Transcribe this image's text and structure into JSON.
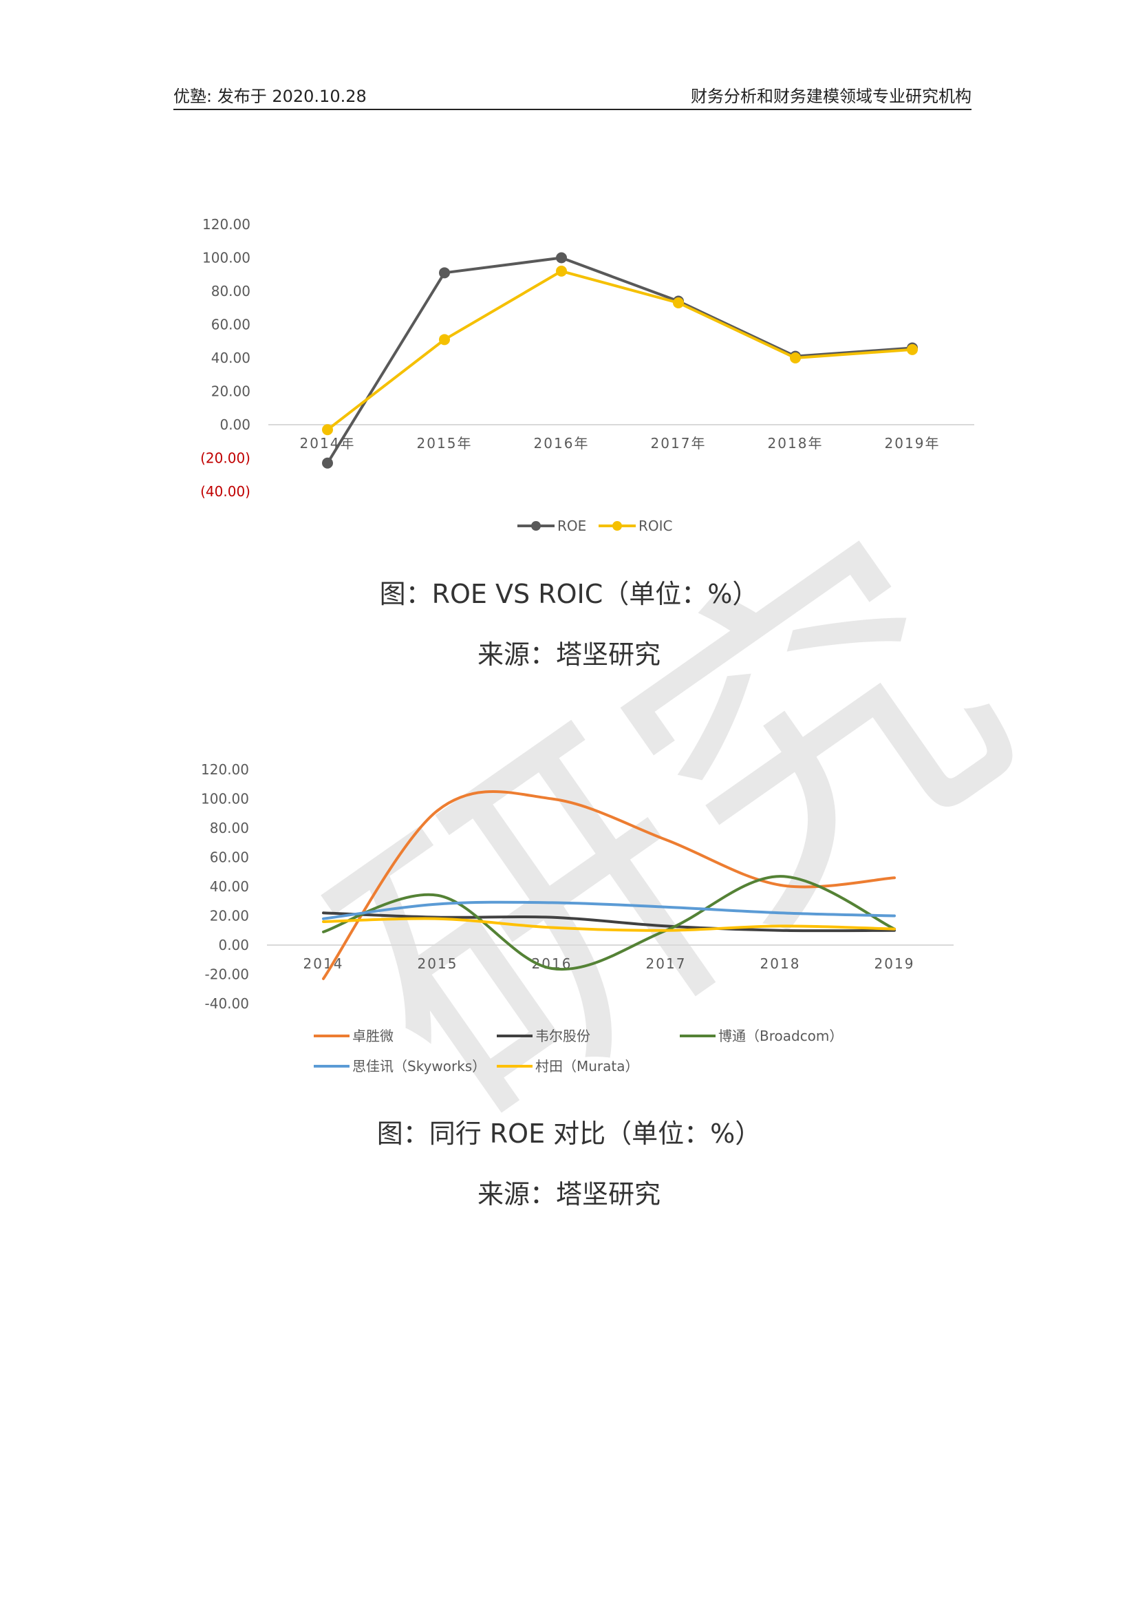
{
  "header": {
    "left": "优塾: 发布于 2020.10.28",
    "right": "财务分析和财务建模领域专业研究机构"
  },
  "watermark": {
    "text": "研究"
  },
  "captions": [
    {
      "title": "图：ROE VS ROIC（单位：%）",
      "source": "来源：塔坚研究"
    },
    {
      "title": "图：同行 ROE 对比（单位：%）",
      "source": "来源：塔坚研究"
    }
  ],
  "chart_data": [
    {
      "type": "line",
      "categories": [
        "2014年",
        "2015年",
        "2016年",
        "2017年",
        "2018年",
        "2019年"
      ],
      "series": [
        {
          "name": "ROE",
          "values": [
            -23,
            91,
            100,
            74,
            41,
            46
          ],
          "color": "#595959"
        },
        {
          "name": "ROIC",
          "values": [
            -3,
            51,
            92,
            73,
            40,
            45
          ],
          "color": "#f5c000"
        }
      ],
      "ylim": [
        -40,
        120
      ],
      "yticks": [
        "120.00",
        "100.00",
        "80.00",
        "60.00",
        "40.00",
        "20.00",
        "0.00",
        "(20.00)",
        "(40.00)"
      ],
      "legend": "bottom",
      "grid": false
    },
    {
      "type": "line",
      "smooth": true,
      "categories": [
        "2014",
        "2015",
        "2016",
        "2017",
        "2018",
        "2019"
      ],
      "series": [
        {
          "name": "卓胜微",
          "values": [
            -23,
            92,
            100,
            72,
            41,
            46
          ],
          "color": "#ed7d31"
        },
        {
          "name": "韦尔股份",
          "values": [
            22,
            19,
            19,
            13,
            10,
            10
          ],
          "color": "#404040"
        },
        {
          "name": "博通（Broadcom）",
          "values": [
            9,
            34,
            -16,
            10,
            47,
            11
          ],
          "color": "#548235"
        },
        {
          "name": "思佳讯（Skyworks）",
          "values": [
            18,
            28,
            29,
            26,
            22,
            20
          ],
          "color": "#5b9bd5"
        },
        {
          "name": "村田（Murata）",
          "values": [
            16,
            18,
            12,
            10,
            13,
            11
          ],
          "color": "#ffc000"
        }
      ],
      "ylim": [
        -40,
        120
      ],
      "yticks": [
        "120.00",
        "100.00",
        "80.00",
        "60.00",
        "40.00",
        "20.00",
        "0.00",
        "-20.00",
        "-40.00"
      ],
      "legend": "bottom",
      "grid": false
    }
  ]
}
